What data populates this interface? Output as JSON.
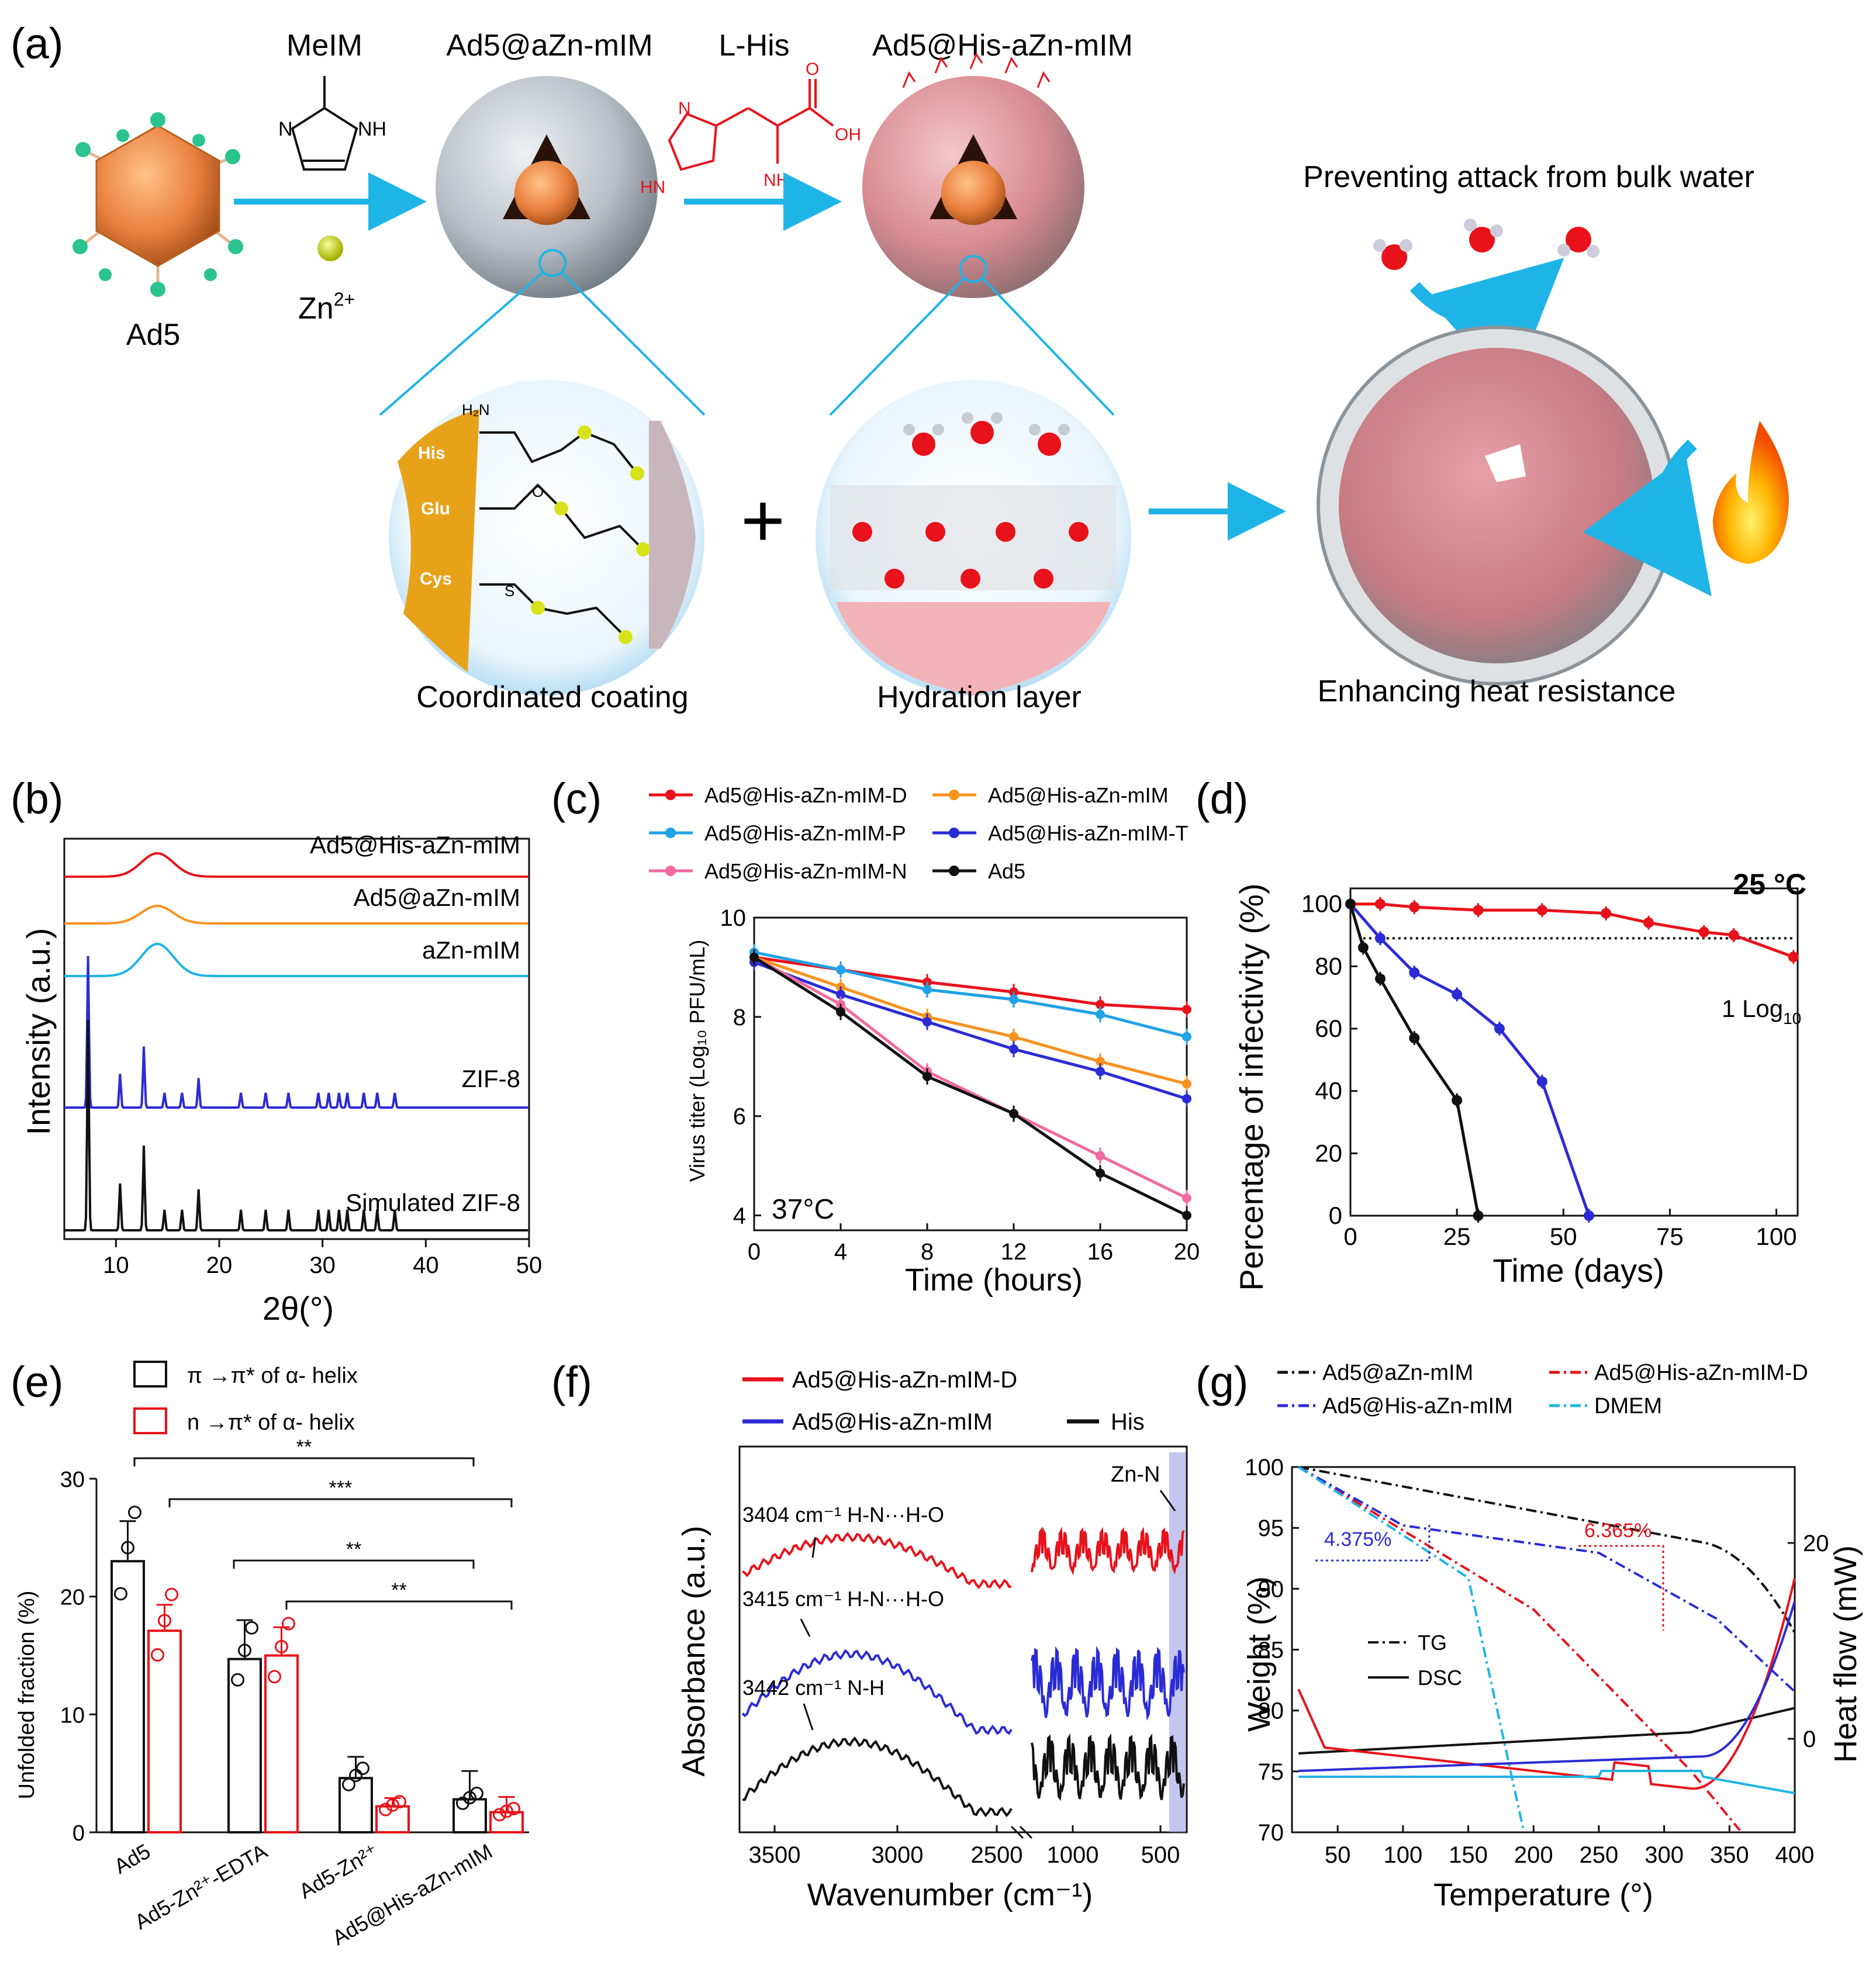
{
  "panel_letters": {
    "a": "(a)",
    "b": "(b)",
    "c": "(c)",
    "d": "(d)",
    "e": "(e)",
    "f": "(f)",
    "g": "(g)"
  },
  "panel_a": {
    "ad5": "Ad5",
    "meim": "MeIM",
    "zn": "Zn",
    "zn_sup": "2+",
    "ad5_azn": "Ad5@aZn-mIM",
    "lhis": "L-His",
    "ad5_his_azn": "Ad5@His-aZn-mIM",
    "preventing": "Preventing attack from bulk water",
    "coordinated": "Coordinated coating",
    "hydration": "Hydration layer",
    "enhancing": "Enhancing heat resistance",
    "plus": "+",
    "residues": [
      "His",
      "Glu",
      "Cys"
    ],
    "chem": {
      "nh": "NH",
      "n": "N",
      "hn": "HN",
      "nh2": "NH₂",
      "oh": "OH",
      "o": "O",
      "h2n": "H₂N",
      "s": "S"
    }
  },
  "chart_data": [
    {
      "panel": "b",
      "type": "line",
      "xlabel": "2θ(°)",
      "ylabel": "Intensity (a.u.)",
      "xlim": [
        5,
        50
      ],
      "xticks": [
        "10",
        "20",
        "30",
        "40",
        "50"
      ],
      "series": [
        {
          "name": "Ad5@His-aZn-mIM",
          "color": "#e8121b",
          "shape": "broad hump near 14°"
        },
        {
          "name": "Ad5@aZn-mIM",
          "color": "#f7921e",
          "shape": "broad hump near 14°"
        },
        {
          "name": "aZn-mIM",
          "color": "#1fb4e6",
          "shape": "broad hump near 14°"
        },
        {
          "name": "ZIF-8",
          "color": "#2b2bd6",
          "peaks": [
            7.3,
            10.4,
            12.7,
            14.7,
            16.4,
            18.0,
            22.1,
            24.5,
            26.7,
            29.6,
            30.6,
            31.6,
            32.4,
            34.0,
            35.3,
            37.0
          ]
        },
        {
          "name": "Simulated ZIF-8",
          "color": "#111111",
          "peaks": [
            7.3,
            10.4,
            12.7,
            14.7,
            16.4,
            18.0,
            22.1,
            24.5,
            26.7,
            29.6,
            30.6,
            31.6,
            32.4,
            34.0,
            35.3,
            37.0
          ]
        }
      ]
    },
    {
      "panel": "c",
      "type": "line",
      "xlabel": "Time (hours)",
      "ylabel": "Virus titer (Log₁₀ PFU/mL)",
      "annotation": "37°C",
      "xlim": [
        0,
        20
      ],
      "ylim": [
        3.7,
        10
      ],
      "xticks": [
        "0",
        "4",
        "8",
        "12",
        "16",
        "20"
      ],
      "yticks": [
        "4",
        "6",
        "8",
        "10"
      ],
      "x": [
        0,
        4,
        8,
        12,
        16,
        20
      ],
      "series": [
        {
          "name": "Ad5@His-aZn-mIM-D",
          "color": "#e8121b",
          "values": [
            9.2,
            8.95,
            8.7,
            8.5,
            8.25,
            8.15
          ]
        },
        {
          "name": "Ad5@His-aZn-mIM",
          "color": "#f7921e",
          "values": [
            9.2,
            8.6,
            8.0,
            7.6,
            7.1,
            6.65
          ]
        },
        {
          "name": "Ad5@His-aZn-mIM-P",
          "color": "#1fa2e6",
          "values": [
            9.3,
            8.95,
            8.55,
            8.35,
            8.05,
            7.6
          ]
        },
        {
          "name": "Ad5@His-aZn-mIM-T",
          "color": "#2b2bd6",
          "values": [
            9.1,
            8.45,
            7.9,
            7.35,
            6.9,
            6.35
          ]
        },
        {
          "name": "Ad5@His-aZn-mIM-N",
          "color": "#f06aa0",
          "values": [
            9.2,
            8.25,
            6.9,
            6.05,
            5.2,
            4.35
          ]
        },
        {
          "name": "Ad5",
          "color": "#111111",
          "values": [
            9.2,
            8.1,
            6.8,
            6.05,
            4.85,
            4.0
          ]
        }
      ]
    },
    {
      "panel": "d",
      "type": "line",
      "title": "25 °C",
      "xlabel": "Time (days)",
      "ylabel": "Percentage of infectivity (%)",
      "annotation": "1 Log",
      "annotation_sub": "10",
      "reference_line": 89,
      "xlim": [
        0,
        105
      ],
      "ylim": [
        0,
        105
      ],
      "xticks": [
        "0",
        "25",
        "50",
        "75",
        "100"
      ],
      "yticks": [
        "0",
        "20",
        "40",
        "60",
        "80",
        "100"
      ],
      "series": [
        {
          "name": "Ad5@His-aZn-mIM-D",
          "color": "#e8121b",
          "x": [
            0,
            7,
            15,
            30,
            45,
            60,
            70,
            83,
            90,
            104
          ],
          "values": [
            100,
            100,
            99,
            98,
            98,
            97,
            94,
            91,
            90,
            83
          ]
        },
        {
          "name": "Ad5@His-aZn-mIM",
          "color": "#2b2bd6",
          "x": [
            0,
            7,
            15,
            25,
            35,
            45,
            56
          ],
          "values": [
            100,
            89,
            78,
            71,
            60,
            43,
            0
          ]
        },
        {
          "name": "Ad5",
          "color": "#111111",
          "x": [
            0,
            3,
            7,
            15,
            25,
            30
          ],
          "values": [
            100,
            86,
            76,
            57,
            37,
            0
          ]
        }
      ]
    },
    {
      "panel": "e",
      "type": "bar",
      "ylabel": "Unfolded fraction (%)",
      "ylim": [
        0,
        30
      ],
      "yticks": [
        "0",
        "10",
        "20",
        "30"
      ],
      "categories": [
        "Ad5",
        "Ad5-Zn²⁺-EDTA",
        "Ad5-Zn²⁺",
        "Ad5@His-aZn-mIM"
      ],
      "series": [
        {
          "name": "π →π* of α- helix",
          "color": "#111111",
          "values": [
            23.0,
            14.7,
            4.6,
            2.8
          ],
          "errors": [
            3.4,
            3.3,
            1.8,
            2.4
          ]
        },
        {
          "name": "n →π* of α- helix",
          "color": "#e8121b",
          "values": [
            17.1,
            15.0,
            2.2,
            1.7
          ],
          "errors": [
            2.2,
            2.4,
            0.7,
            1.3
          ]
        }
      ],
      "significance": [
        "**",
        "***",
        "**",
        "**"
      ]
    },
    {
      "panel": "f",
      "type": "line",
      "xlabel": "Wavenumber (cm⁻¹)",
      "ylabel": "Absorbance (a.u.)",
      "xticks": [
        "3500",
        "3000",
        "2500",
        "1000",
        "500"
      ],
      "series": [
        {
          "name": "Ad5@His-aZn-mIM-D",
          "color": "#e8121b"
        },
        {
          "name": "Ad5@His-aZn-mIM",
          "color": "#2b2bd6"
        },
        {
          "name": "His",
          "color": "#111111"
        }
      ],
      "annotations": [
        "3404 cm⁻¹ H-N···H-O",
        "3415 cm⁻¹ H-N···H-O",
        "3442 cm⁻¹ N-H",
        "Zn-N"
      ]
    },
    {
      "panel": "g",
      "type": "line",
      "xlabel": "Temperature (°)",
      "ylabel": "Weight (%)",
      "ylabel_right": "Heat flow (mW)",
      "xlim": [
        15,
        400
      ],
      "ylim": [
        70,
        100
      ],
      "xticks": [
        "50",
        "100",
        "150",
        "200",
        "250",
        "300",
        "350",
        "400"
      ],
      "yticks": [
        "70",
        "75",
        "80",
        "85",
        "90",
        "95",
        "100"
      ],
      "yticks_right": [
        "0",
        "20"
      ],
      "series": [
        {
          "name": "Ad5@aZn-mIM",
          "color": "#111111"
        },
        {
          "name": "Ad5@His-aZn-mIM-D",
          "color": "#e8121b"
        },
        {
          "name": "Ad5@His-aZn-mIM",
          "color": "#2b2bd6"
        },
        {
          "name": "DMEM",
          "color": "#1fb4e6"
        }
      ],
      "style_legend": [
        "TG",
        "DSC"
      ],
      "annotations": [
        "4.375%",
        "6.365%"
      ]
    }
  ]
}
